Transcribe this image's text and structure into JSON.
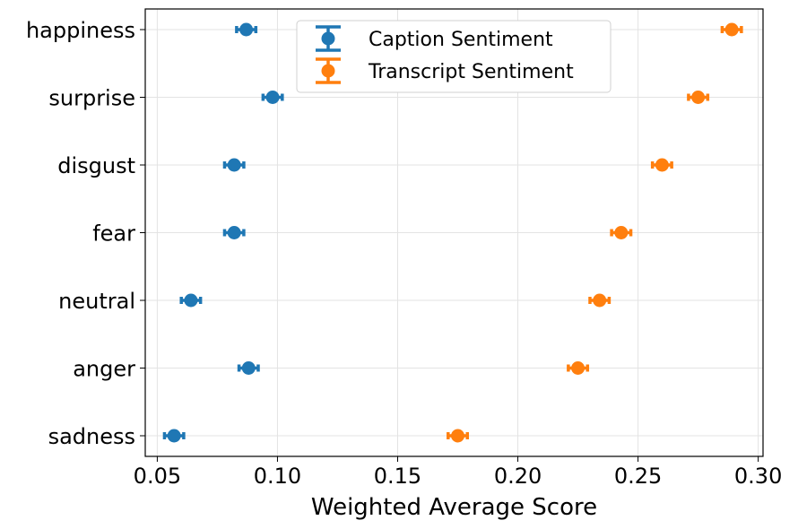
{
  "chart_data": {
    "type": "scatter",
    "orientation": "horizontal-errorbar",
    "title": "",
    "xlabel": "Weighted Average Score",
    "ylabel": "",
    "xlim": [
      0.045,
      0.302
    ],
    "xticks": [
      0.05,
      0.1,
      0.15,
      0.2,
      0.25,
      0.3
    ],
    "xtick_labels": [
      "0.05",
      "0.10",
      "0.15",
      "0.20",
      "0.25",
      "0.30"
    ],
    "categories": [
      "happiness",
      "surprise",
      "disgust",
      "fear",
      "neutral",
      "anger",
      "sadness"
    ],
    "grid": true,
    "legend_position": "top-center",
    "series": [
      {
        "name": "Caption Sentiment",
        "color": "#1f77b4",
        "values": [
          0.087,
          0.098,
          0.082,
          0.082,
          0.064,
          0.088,
          0.057
        ],
        "errors": [
          0.004,
          0.004,
          0.004,
          0.004,
          0.004,
          0.004,
          0.004
        ]
      },
      {
        "name": "Transcript Sentiment",
        "color": "#ff7f0e",
        "values": [
          0.289,
          0.275,
          0.26,
          0.243,
          0.234,
          0.225,
          0.175
        ],
        "errors": [
          0.004,
          0.004,
          0.004,
          0.004,
          0.004,
          0.004,
          0.004
        ]
      }
    ]
  }
}
